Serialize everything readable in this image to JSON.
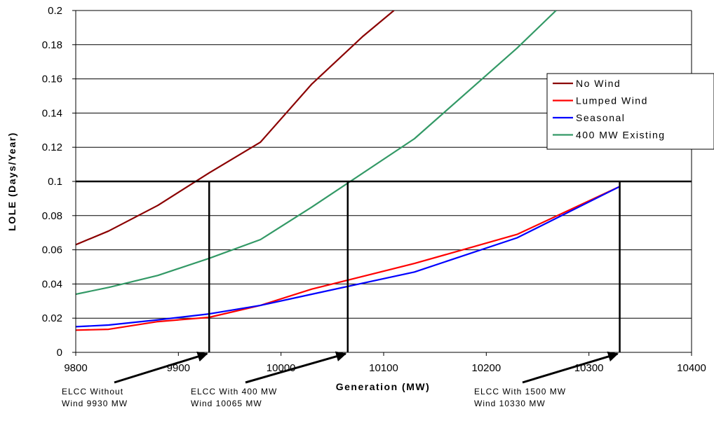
{
  "chart_data": {
    "type": "line",
    "title": "",
    "xlabel": "Generation (MW)",
    "ylabel": "LOLE (Days/Year)",
    "xlim": [
      9800,
      10400
    ],
    "ylim": [
      0,
      0.2
    ],
    "x_ticks": [
      "9800",
      "9900",
      "10000",
      "10100",
      "10200",
      "10300",
      "10400"
    ],
    "y_ticks": [
      "0",
      "0.02",
      "0.04",
      "0.06",
      "0.08",
      "0.1",
      "0.12",
      "0.14",
      "0.16",
      "0.18",
      "0.2"
    ],
    "grid": "horizontal",
    "legend_position": "right",
    "series": [
      {
        "name": "No Wind",
        "color": "#8b0000",
        "points": [
          [
            9800,
            0.063
          ],
          [
            9832,
            0.071
          ],
          [
            9880,
            0.086
          ],
          [
            9930,
            0.105
          ],
          [
            9980,
            0.123
          ],
          [
            10030,
            0.157
          ],
          [
            10080,
            0.185
          ],
          [
            10110,
            0.2
          ]
        ]
      },
      {
        "name": "Lumped Wind",
        "color": "#ff0000",
        "points": [
          [
            9800,
            0.013
          ],
          [
            9832,
            0.0135
          ],
          [
            9880,
            0.018
          ],
          [
            9930,
            0.0205
          ],
          [
            9980,
            0.0275
          ],
          [
            10030,
            0.037
          ],
          [
            10130,
            0.052
          ],
          [
            10230,
            0.069
          ],
          [
            10330,
            0.097
          ]
        ]
      },
      {
        "name": "Seasonal",
        "color": "#0000ff",
        "points": [
          [
            9800,
            0.015
          ],
          [
            9832,
            0.016
          ],
          [
            9880,
            0.019
          ],
          [
            9930,
            0.0225
          ],
          [
            9980,
            0.0275
          ],
          [
            10030,
            0.034
          ],
          [
            10130,
            0.047
          ],
          [
            10230,
            0.067
          ],
          [
            10330,
            0.097
          ]
        ]
      },
      {
        "name": "400 MW Existing",
        "color": "#339966",
        "points": [
          [
            9800,
            0.034
          ],
          [
            9832,
            0.038
          ],
          [
            9880,
            0.045
          ],
          [
            9930,
            0.055
          ],
          [
            9980,
            0.066
          ],
          [
            10030,
            0.085
          ],
          [
            10130,
            0.125
          ],
          [
            10230,
            0.178
          ],
          [
            10268,
            0.2
          ]
        ]
      }
    ],
    "reference_line": {
      "y": 0.1
    },
    "elcc_markers": [
      {
        "x": 9930,
        "label_line1": "ELCC Without",
        "label_line2": "Wind 9930 MW"
      },
      {
        "x": 10065,
        "label_line1": "ELCC With 400 MW",
        "label_line2": "Wind 10065 MW"
      },
      {
        "x": 10330,
        "label_line1": "ELCC With 1500 MW",
        "label_line2": "Wind 10330 MW"
      }
    ]
  }
}
